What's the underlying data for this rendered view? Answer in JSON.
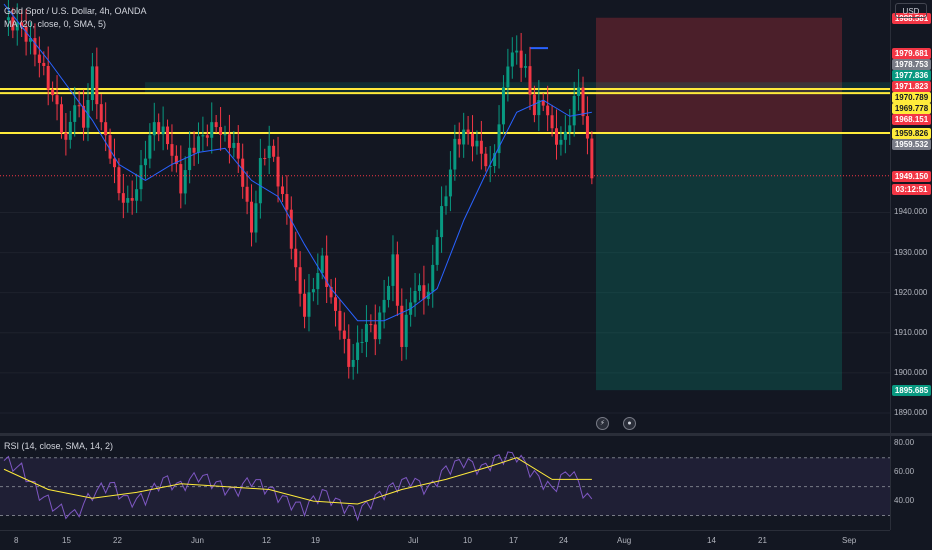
{
  "legend": {
    "symbol": "Gold Spot / U.S. Dollar, 4h, OANDA",
    "ma": "MA (20, close, 0, SMA, 5)",
    "rsi": "RSI (14, close, SMA, 14, 2)"
  },
  "currency": "USD",
  "price_ticks": [
    "1940.000",
    "1930.000",
    "1920.000",
    "1910.000",
    "1900.000",
    "1890.000"
  ],
  "price_badges": [
    {
      "label": "1988.581",
      "price": 1988.581,
      "bg": "#f23645",
      "fg": "#ffffff"
    },
    {
      "label": "1979.681",
      "price": 1979.681,
      "bg": "#f23645",
      "fg": "#ffffff"
    },
    {
      "label": "1978.753",
      "price": 1978.753,
      "bg": "#787b86",
      "fg": "#ffffff"
    },
    {
      "label": "1977.836",
      "price": 1977.836,
      "bg": "#089981",
      "fg": "#ffffff"
    },
    {
      "label": "1971.823",
      "price": 1971.823,
      "bg": "#f23645",
      "fg": "#ffffff"
    },
    {
      "label": "1970.789",
      "price": 1970.789,
      "bg": "#ffeb3b",
      "fg": "#131722"
    },
    {
      "label": "1969.778",
      "price": 1969.778,
      "bg": "#ffeb3b",
      "fg": "#131722"
    },
    {
      "label": "1968.151",
      "price": 1968.151,
      "bg": "#f23645",
      "fg": "#ffffff"
    },
    {
      "label": "1959.826",
      "price": 1959.826,
      "bg": "#ffeb3b",
      "fg": "#131722"
    },
    {
      "label": "1959.532",
      "price": 1959.532,
      "bg": "#787b86",
      "fg": "#ffffff"
    },
    {
      "label": "1949.150",
      "price": 1949.15,
      "bg": "#f23645",
      "fg": "#ffffff"
    },
    {
      "label": "03:12:51",
      "price": 1945.8,
      "bg": "#f23645",
      "fg": "#ffffff"
    },
    {
      "label": "1895.685",
      "price": 1895.685,
      "bg": "#089981",
      "fg": "#ffffff"
    }
  ],
  "rsi_ticks": [
    "80.00",
    "60.00",
    "40.00"
  ],
  "time_ticks": [
    "8",
    "15",
    "22",
    "Jun",
    "12",
    "19",
    "Jul",
    "10",
    "17",
    "24",
    "Aug",
    "14",
    "21",
    "Sep"
  ],
  "colors": {
    "background": "#131722",
    "bull": "#089981",
    "bear": "#f23645",
    "ma_line": "#2962ff",
    "support_lines": "#ffeb3b",
    "rsi_line": "#7e57c2",
    "rsi_ma": "#ffeb3b",
    "grid": "#1e222d"
  },
  "chart_data": {
    "type": "candlestick",
    "price_range": [
      1885,
      1993
    ],
    "horizontal_levels": [
      1970.789,
      1969.778,
      1959.826
    ],
    "short_position": {
      "entry": 1959.826,
      "stop": 1988.581,
      "target": 1895.685
    },
    "close_path": [
      [
        0,
        1988
      ],
      [
        4,
        1986
      ],
      [
        8,
        1978
      ],
      [
        12,
        1966
      ],
      [
        14,
        1957
      ],
      [
        16,
        1968
      ],
      [
        18,
        1962
      ],
      [
        20,
        1975
      ],
      [
        22,
        1962
      ],
      [
        24,
        1955
      ],
      [
        26,
        1945
      ],
      [
        28,
        1942
      ],
      [
        30,
        1946
      ],
      [
        32,
        1955
      ],
      [
        34,
        1962
      ],
      [
        36,
        1960
      ],
      [
        38,
        1955
      ],
      [
        40,
        1946
      ],
      [
        42,
        1955
      ],
      [
        44,
        1958
      ],
      [
        46,
        1960
      ],
      [
        48,
        1962
      ],
      [
        50,
        1958
      ],
      [
        52,
        1957
      ],
      [
        54,
        1948
      ],
      [
        56,
        1935
      ],
      [
        58,
        1952
      ],
      [
        60,
        1957
      ],
      [
        62,
        1948
      ],
      [
        64,
        1940
      ],
      [
        66,
        1925
      ],
      [
        68,
        1915
      ],
      [
        70,
        1922
      ],
      [
        72,
        1928
      ],
      [
        74,
        1918
      ],
      [
        76,
        1912
      ],
      [
        78,
        1902
      ],
      [
        80,
        1906
      ],
      [
        82,
        1912
      ],
      [
        84,
        1910
      ],
      [
        86,
        1918
      ],
      [
        88,
        1928
      ],
      [
        90,
        1907
      ],
      [
        92,
        1919
      ],
      [
        94,
        1921
      ],
      [
        96,
        1919
      ],
      [
        98,
        1935
      ],
      [
        100,
        1945
      ],
      [
        102,
        1957
      ],
      [
        104,
        1960
      ],
      [
        106,
        1958
      ],
      [
        108,
        1955
      ],
      [
        110,
        1950
      ],
      [
        112,
        1962
      ],
      [
        114,
        1978
      ],
      [
        116,
        1980
      ],
      [
        118,
        1975
      ],
      [
        120,
        1965
      ],
      [
        122,
        1968
      ],
      [
        124,
        1960
      ],
      [
        126,
        1957
      ],
      [
        128,
        1963
      ],
      [
        130,
        1972
      ],
      [
        132,
        1957
      ],
      [
        133,
        1950
      ]
    ],
    "ma_path": [
      [
        0,
        1992
      ],
      [
        10,
        1978
      ],
      [
        20,
        1963
      ],
      [
        26,
        1952
      ],
      [
        32,
        1948
      ],
      [
        38,
        1952
      ],
      [
        44,
        1955
      ],
      [
        50,
        1956
      ],
      [
        56,
        1948
      ],
      [
        62,
        1944
      ],
      [
        68,
        1932
      ],
      [
        74,
        1921
      ],
      [
        80,
        1913
      ],
      [
        86,
        1913
      ],
      [
        92,
        1916
      ],
      [
        98,
        1921
      ],
      [
        104,
        1938
      ],
      [
        110,
        1952
      ],
      [
        116,
        1965
      ],
      [
        122,
        1968
      ],
      [
        128,
        1964
      ],
      [
        133,
        1965
      ]
    ],
    "rsi_levels": [
      70,
      50,
      30
    ],
    "rsi_range": [
      20,
      85
    ],
    "rsi_path": [
      [
        0,
        68
      ],
      [
        4,
        62
      ],
      [
        8,
        45
      ],
      [
        12,
        35
      ],
      [
        16,
        30
      ],
      [
        20,
        45
      ],
      [
        24,
        52
      ],
      [
        28,
        40
      ],
      [
        32,
        42
      ],
      [
        36,
        55
      ],
      [
        40,
        50
      ],
      [
        44,
        58
      ],
      [
        48,
        52
      ],
      [
        52,
        46
      ],
      [
        56,
        55
      ],
      [
        60,
        48
      ],
      [
        64,
        40
      ],
      [
        68,
        35
      ],
      [
        72,
        46
      ],
      [
        76,
        38
      ],
      [
        80,
        32
      ],
      [
        84,
        42
      ],
      [
        88,
        50
      ],
      [
        92,
        55
      ],
      [
        96,
        48
      ],
      [
        100,
        62
      ],
      [
        104,
        68
      ],
      [
        108,
        62
      ],
      [
        112,
        70
      ],
      [
        116,
        72
      ],
      [
        120,
        58
      ],
      [
        124,
        48
      ],
      [
        128,
        62
      ],
      [
        132,
        42
      ],
      [
        133,
        40
      ]
    ],
    "rsi_ma_path": [
      [
        0,
        62
      ],
      [
        10,
        48
      ],
      [
        20,
        42
      ],
      [
        30,
        46
      ],
      [
        40,
        52
      ],
      [
        50,
        50
      ],
      [
        60,
        48
      ],
      [
        70,
        40
      ],
      [
        80,
        38
      ],
      [
        90,
        48
      ],
      [
        100,
        55
      ],
      [
        110,
        64
      ],
      [
        116,
        70
      ],
      [
        124,
        55
      ],
      [
        133,
        55
      ]
    ]
  }
}
